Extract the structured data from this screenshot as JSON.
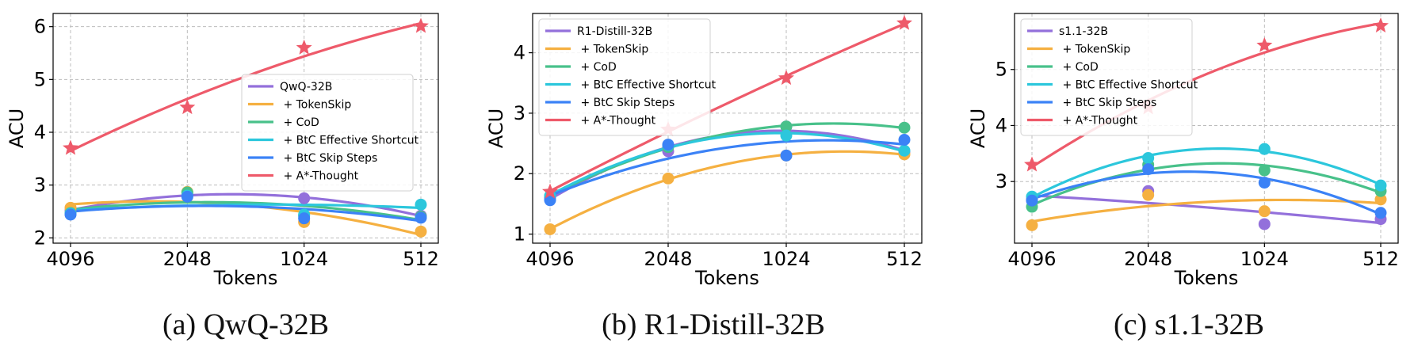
{
  "captions": [
    "(a)  QwQ-32B",
    "(b)  R1-Distill-32B",
    "(c)  s1.1-32B"
  ],
  "colors": {
    "base": "#9370DB",
    "TokenSkip": "#F5B041",
    "CoD": "#48C18A",
    "BtC Effective Shortcut": "#2CC7DC",
    "BtC Skip Steps": "#3B82F6",
    "A*-Thought": "#EE5A6A"
  },
  "chart_data": [
    {
      "type": "line",
      "xlabel": "Tokens",
      "ylabel": "ACU",
      "categories": [
        "4096",
        "2048",
        "1024",
        "512"
      ],
      "yticks": [
        2,
        3,
        4,
        5,
        6
      ],
      "ylim": [
        1.9,
        6.25
      ],
      "grid": true,
      "legend_position": "center-right",
      "series": [
        {
          "name": "QwQ-32B",
          "values": [
            2.52,
            2.82,
            2.75,
            2.42
          ]
        },
        {
          "name": " + TokenSkip",
          "values": [
            2.57,
            2.87,
            2.3,
            2.12
          ]
        },
        {
          "name": " + CoD",
          "values": [
            2.47,
            2.86,
            2.42,
            2.4
          ]
        },
        {
          "name": " + BtC Effective Shortcut",
          "values": [
            2.46,
            2.8,
            2.44,
            2.63
          ]
        },
        {
          "name": " + BtC Skip Steps",
          "values": [
            2.44,
            2.78,
            2.37,
            2.38
          ]
        },
        {
          "name": " + A*-Thought",
          "values": [
            3.7,
            4.47,
            5.6,
            6.01
          ]
        }
      ]
    },
    {
      "type": "line",
      "xlabel": "Tokens",
      "ylabel": "ACU",
      "categories": [
        "4096",
        "2048",
        "1024",
        "512"
      ],
      "yticks": [
        1,
        2,
        3,
        4
      ],
      "ylim": [
        0.85,
        4.65
      ],
      "grid": true,
      "legend_position": "top-left",
      "series": [
        {
          "name": "R1-Distill-32B",
          "values": [
            1.6,
            2.37,
            2.78,
            2.36
          ]
        },
        {
          "name": " + TokenSkip",
          "values": [
            1.08,
            1.92,
            2.3,
            2.32
          ]
        },
        {
          "name": " + CoD",
          "values": [
            1.63,
            2.44,
            2.78,
            2.76
          ]
        },
        {
          "name": " + BtC Effective Shortcut",
          "values": [
            1.63,
            2.47,
            2.63,
            2.38
          ]
        },
        {
          "name": " + BtC Skip Steps",
          "values": [
            1.56,
            2.48,
            2.3,
            2.56
          ]
        },
        {
          "name": " + A*-Thought",
          "values": [
            1.7,
            2.73,
            3.58,
            4.49
          ]
        }
      ]
    },
    {
      "type": "line",
      "xlabel": "Tokens",
      "ylabel": "ACU",
      "categories": [
        "4096",
        "2048",
        "1024",
        "512"
      ],
      "yticks": [
        3,
        4,
        5
      ],
      "ylim": [
        1.9,
        6.0
      ],
      "grid": true,
      "legend_position": "top-left",
      "series": [
        {
          "name": "s1.1-32B",
          "values": [
            2.68,
            2.83,
            2.24,
            2.33
          ]
        },
        {
          "name": " + TokenSkip",
          "values": [
            2.22,
            2.76,
            2.47,
            2.68
          ]
        },
        {
          "name": " + CoD",
          "values": [
            2.55,
            3.3,
            3.2,
            2.83
          ]
        },
        {
          "name": " + BtC Effective Shortcut",
          "values": [
            2.73,
            3.42,
            3.58,
            2.93
          ]
        },
        {
          "name": " + BtC Skip Steps",
          "values": [
            2.66,
            3.22,
            2.98,
            2.44
          ]
        },
        {
          "name": " + A*-Thought",
          "values": [
            3.3,
            4.32,
            5.43,
            5.78
          ]
        }
      ]
    }
  ]
}
